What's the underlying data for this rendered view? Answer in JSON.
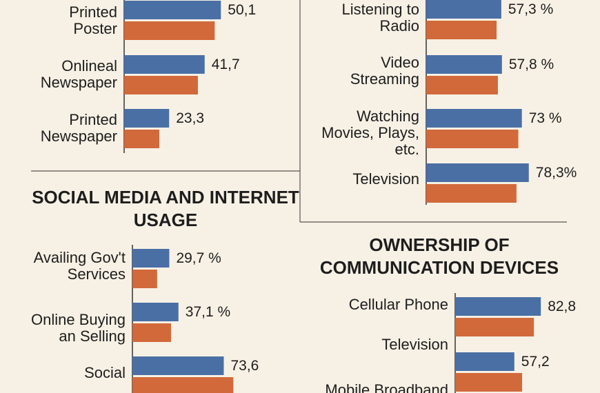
{
  "chart_data": [
    {
      "type": "bar",
      "categories": [
        "Printed Poster",
        "Onlineal Newspaper",
        "Printed Newspaper"
      ],
      "series": [
        {
          "color": "#4a6fa5",
          "values": [
            50.1,
            41.7,
            23.3
          ],
          "value_labels": [
            "50,1",
            "41,7",
            "23,3"
          ]
        },
        {
          "color": "#d2693a",
          "values": [
            46.9,
            38.2,
            18.2
          ]
        }
      ]
    },
    {
      "type": "bar",
      "categories": [
        "Listening to Radio",
        "Video Streaming",
        "Watching Movies, Plays, etc.",
        "Television"
      ],
      "series": [
        {
          "color": "#4a6fa5",
          "values": [
            57.3,
            57.8,
            73,
            78.3
          ],
          "value_labels": [
            "57,3 %",
            "57,8 %",
            "73 %",
            "78,3%"
          ]
        },
        {
          "color": "#d2693a",
          "values": [
            53.7,
            54.7,
            70.3,
            68.9
          ]
        }
      ]
    },
    {
      "type": "bar",
      "title": "SOCIAL MEDIA AND INTERNET USAGE",
      "categories": [
        "Availing Gov't Services",
        "Online Buying an Selling",
        "Social"
      ],
      "series": [
        {
          "color": "#4a6fa5",
          "values": [
            29.7,
            37.1,
            73.6
          ],
          "value_labels": [
            "29,7 %",
            "37,1 %",
            "73,6"
          ]
        },
        {
          "color": "#d2693a",
          "values": [
            19.9,
            31.1,
            81.3
          ]
        }
      ]
    },
    {
      "type": "bar",
      "title": "OWNERSHIP OF COMMUNICATION DEVICES",
      "categories": [
        "Cellular Phone",
        "Television",
        "Mobile Broadband"
      ],
      "series": [
        {
          "color": "#4a6fa5",
          "values": [
            82.8,
            57.2,
            null
          ],
          "value_labels": [
            "82,8",
            "57,2",
            null
          ]
        },
        {
          "color": "#d2693a",
          "values": [
            76.1,
            64.7,
            null
          ]
        }
      ]
    }
  ]
}
